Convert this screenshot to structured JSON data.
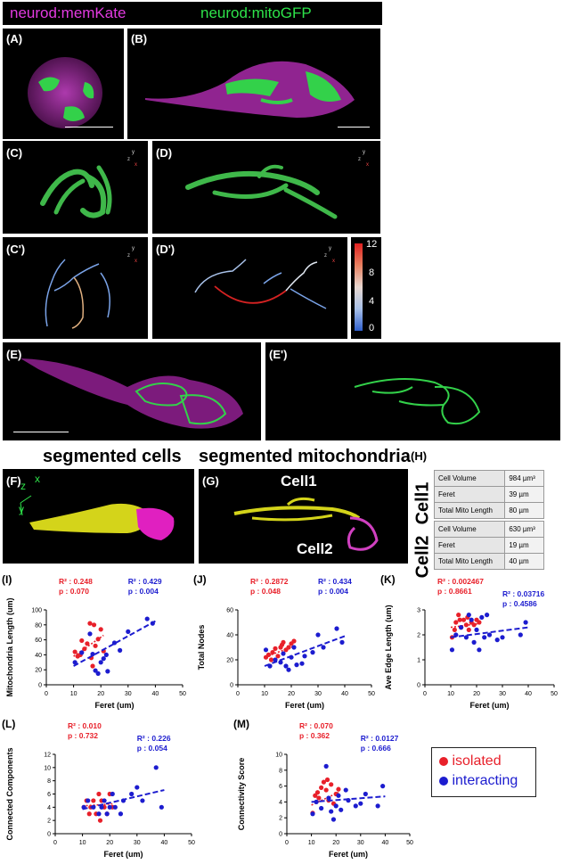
{
  "header": {
    "memkate_label": "neurod:memKate",
    "mitogfp_label": "neurod:mitoGFP"
  },
  "panels": {
    "A": "(A)",
    "B": "(B)",
    "C": "(C)",
    "D": "(D)",
    "C1": "(C')",
    "D1": "(D')",
    "E": "(E)",
    "E1": "(E')",
    "F": "(F)",
    "G": "(G)",
    "H": "(H)",
    "I": "(I)",
    "J": "(J)",
    "K": "(K)",
    "L": "(L)",
    "M": "(M)"
  },
  "colorbar": {
    "ticks": [
      "12",
      "8",
      "4",
      "0"
    ]
  },
  "segmentation": {
    "cells_title": "segmented cells",
    "mito_title": "segmented mitochondria",
    "cell1": "Cell1",
    "cell2": "Cell2",
    "axis_z": "z",
    "axis_x": "x",
    "axis_y": "y"
  },
  "table": {
    "cell1_label": "Cell1",
    "cell2_label": "Cell2",
    "cell1_rows": [
      [
        "Cell Volume",
        "984 µm³"
      ],
      [
        "Feret",
        "39 µm"
      ],
      [
        "Total Mito Length",
        "80 µm"
      ]
    ],
    "cell2_rows": [
      [
        "Cell Volume",
        "630 µm³"
      ],
      [
        "Feret",
        "19 µm"
      ],
      [
        "Total Mito Length",
        "40 µm"
      ]
    ]
  },
  "legend": {
    "isolated": "isolated",
    "interacting": "interacting",
    "isolated_color": "#e8202a",
    "interacting_color": "#1c1ccf"
  },
  "chart_data": [
    {
      "type": "scatter",
      "id": "I",
      "xlabel": "Feret (um)",
      "ylabel": "Mitochondria Length (um)",
      "xlim": [
        0,
        50
      ],
      "ylim": [
        0,
        100
      ],
      "xticks": [
        0,
        10,
        20,
        30,
        40,
        50
      ],
      "yticks": [
        0,
        20,
        40,
        60,
        80,
        100
      ],
      "stats": {
        "red_r2": "R² : 0.248",
        "red_p": "p   : 0.070",
        "blue_r2": "R² : 0.429",
        "blue_p": "p   : 0.004"
      },
      "series": [
        {
          "name": "isolated",
          "color": "#e8202a",
          "points": [
            [
              10.5,
              44
            ],
            [
              11.5,
              38
            ],
            [
              12.5,
              40
            ],
            [
              13,
              59
            ],
            [
              14,
              48
            ],
            [
              15,
              55
            ],
            [
              16,
              82
            ],
            [
              16.5,
              36
            ],
            [
              17,
              25
            ],
            [
              17.5,
              80
            ],
            [
              18,
              52
            ],
            [
              19,
              61
            ],
            [
              20,
              74
            ],
            [
              21,
              45
            ]
          ],
          "fit": [
            [
              10,
              38
            ],
            [
              21,
              66
            ]
          ]
        },
        {
          "name": "interacting",
          "color": "#1c1ccf",
          "points": [
            [
              10.5,
              30
            ],
            [
              13,
              43
            ],
            [
              16,
              68
            ],
            [
              17,
              41
            ],
            [
              18,
              19
            ],
            [
              19,
              15
            ],
            [
              20,
              30
            ],
            [
              21,
              35
            ],
            [
              22,
              40
            ],
            [
              22.5,
              18
            ],
            [
              25,
              56
            ],
            [
              27,
              46
            ],
            [
              30,
              71
            ],
            [
              37,
              88
            ],
            [
              39,
              82
            ]
          ],
          "fit": [
            [
              10,
              25
            ],
            [
              40,
              85
            ]
          ]
        }
      ]
    },
    {
      "type": "scatter",
      "id": "J",
      "xlabel": "Feret (um)",
      "ylabel": "Total Nodes",
      "xlim": [
        0,
        50
      ],
      "ylim": [
        0,
        60
      ],
      "xticks": [
        0,
        10,
        20,
        30,
        40,
        50
      ],
      "yticks": [
        0,
        20,
        40,
        60
      ],
      "stats": {
        "red_r2": "R² : 0.2872",
        "red_p": "p   : 0.048",
        "blue_r2": "R² : 0.434",
        "blue_p": "p   : 0.004"
      },
      "series": [
        {
          "name": "isolated",
          "color": "#e8202a",
          "points": [
            [
              10.5,
              22
            ],
            [
              11.5,
              24
            ],
            [
              12.5,
              20
            ],
            [
              13,
              26
            ],
            [
              14,
              29
            ],
            [
              15,
              23
            ],
            [
              16,
              30
            ],
            [
              16.5,
              32
            ],
            [
              17,
              34
            ],
            [
              18,
              28
            ],
            [
              19,
              30
            ],
            [
              20,
              33
            ],
            [
              21,
              35
            ]
          ],
          "fit": [
            [
              10,
              22
            ],
            [
              21,
              31
            ]
          ]
        },
        {
          "name": "interacting",
          "color": "#1c1ccf",
          "points": [
            [
              10.5,
              28
            ],
            [
              12,
              15
            ],
            [
              14,
              20
            ],
            [
              16,
              18
            ],
            [
              17,
              25
            ],
            [
              18,
              15
            ],
            [
              19,
              12
            ],
            [
              20,
              22
            ],
            [
              21,
              30
            ],
            [
              22,
              16
            ],
            [
              24,
              17
            ],
            [
              25,
              23
            ],
            [
              28,
              26
            ],
            [
              30,
              40
            ],
            [
              32,
              30
            ],
            [
              37,
              45
            ],
            [
              39,
              34
            ]
          ],
          "fit": [
            [
              10,
              15
            ],
            [
              40,
              39
            ]
          ]
        }
      ]
    },
    {
      "type": "scatter",
      "id": "K",
      "xlabel": "Feret (um)",
      "ylabel": "Ave Edge Length (um)",
      "xlim": [
        0,
        50
      ],
      "ylim": [
        0,
        3
      ],
      "xticks": [
        0,
        10,
        20,
        30,
        40,
        50
      ],
      "yticks": [
        0,
        1,
        2,
        3
      ],
      "stats": {
        "red_r2": "R² : 0.002467",
        "red_p": "p   : 0.8661",
        "blue_r2": "R² : 0.03716",
        "blue_p": "p   : 0.4586"
      },
      "series": [
        {
          "name": "isolated",
          "color": "#e8202a",
          "points": [
            [
              10.5,
              1.9
            ],
            [
              11.5,
              2.2
            ],
            [
              12,
              2.5
            ],
            [
              13,
              2.8
            ],
            [
              13.5,
              2.6
            ],
            [
              14,
              2.3
            ],
            [
              15,
              2.6
            ],
            [
              16,
              2.4
            ],
            [
              16.5,
              2.7
            ],
            [
              17,
              2.2
            ],
            [
              18,
              2.5
            ],
            [
              19,
              2.4
            ],
            [
              20,
              2.6
            ],
            [
              21,
              2.5
            ]
          ],
          "fit": [
            [
              10,
              2.3
            ],
            [
              21,
              2.45
            ]
          ]
        },
        {
          "name": "interacting",
          "color": "#1c1ccf",
          "points": [
            [
              10.5,
              1.4
            ],
            [
              12,
              2.0
            ],
            [
              14,
              2.3
            ],
            [
              16,
              1.9
            ],
            [
              17,
              2.8
            ],
            [
              18,
              2.6
            ],
            [
              19,
              1.7
            ],
            [
              20,
              2.2
            ],
            [
              21,
              1.4
            ],
            [
              22,
              2.7
            ],
            [
              23,
              1.9
            ],
            [
              24,
              2.8
            ],
            [
              25,
              2.0
            ],
            [
              28,
              1.8
            ],
            [
              30,
              1.9
            ],
            [
              37,
              2.0
            ],
            [
              39,
              2.5
            ]
          ],
          "fit": [
            [
              10,
              1.9
            ],
            [
              40,
              2.3
            ]
          ]
        }
      ]
    },
    {
      "type": "scatter",
      "id": "L",
      "xlabel": "Feret (um)",
      "ylabel": "Connected Components",
      "xlim": [
        0,
        50
      ],
      "ylim": [
        0,
        12
      ],
      "xticks": [
        0,
        10,
        20,
        30,
        40,
        50
      ],
      "yticks": [
        0,
        2,
        4,
        6,
        8,
        10,
        12
      ],
      "stats": {
        "red_r2": "R² : 0.010",
        "red_p": "p   : 0.732",
        "blue_r2": "R² : 0.226",
        "blue_p": "p   : 0.054"
      },
      "series": [
        {
          "name": "isolated",
          "color": "#e8202a",
          "points": [
            [
              10.5,
              4
            ],
            [
              11.5,
              5
            ],
            [
              12.5,
              3
            ],
            [
              13,
              4
            ],
            [
              14,
              5
            ],
            [
              15,
              3
            ],
            [
              16,
              6
            ],
            [
              16.5,
              2
            ],
            [
              17,
              5
            ],
            [
              18,
              4
            ],
            [
              19,
              3
            ],
            [
              20,
              6
            ],
            [
              21,
              4
            ]
          ],
          "fit": [
            [
              10,
              4.2
            ],
            [
              21,
              4.5
            ]
          ]
        },
        {
          "name": "interacting",
          "color": "#1c1ccf",
          "points": [
            [
              10.5,
              4
            ],
            [
              12,
              5
            ],
            [
              14,
              4
            ],
            [
              16,
              3
            ],
            [
              17,
              4
            ],
            [
              18,
              5
            ],
            [
              19,
              3
            ],
            [
              20,
              4
            ],
            [
              21,
              6
            ],
            [
              22,
              4
            ],
            [
              24,
              3
            ],
            [
              25,
              5
            ],
            [
              28,
              6
            ],
            [
              30,
              7
            ],
            [
              32,
              5
            ],
            [
              37,
              10
            ],
            [
              39,
              4
            ]
          ],
          "fit": [
            [
              10,
              3.7
            ],
            [
              40,
              6.6
            ]
          ]
        }
      ]
    },
    {
      "type": "scatter",
      "id": "M",
      "xlabel": "Feret (um)",
      "ylabel": "Connectivity Score",
      "xlim": [
        0,
        50
      ],
      "ylim": [
        0,
        10
      ],
      "xticks": [
        0,
        10,
        20,
        30,
        40,
        50
      ],
      "yticks": [
        0,
        2,
        4,
        6,
        8,
        10
      ],
      "stats": {
        "red_r2": "R² : 0.070",
        "red_p": "p   : 0.362",
        "blue_r2": "R² : 0.0127",
        "blue_p": "p   : 0.666"
      },
      "series": [
        {
          "name": "isolated",
          "color": "#e8202a",
          "points": [
            [
              10.5,
              2.6
            ],
            [
              11.5,
              4.8
            ],
            [
              12.5,
              5.2
            ],
            [
              13,
              4.5
            ],
            [
              14,
              5.8
            ],
            [
              15,
              6.5
            ],
            [
              16,
              5.5
            ],
            [
              16.5,
              6.8
            ],
            [
              17,
              4.2
            ],
            [
              18,
              6.2
            ],
            [
              19,
              3.8
            ],
            [
              20,
              5.0
            ],
            [
              21,
              5.6
            ]
          ],
          "fit": [
            [
              10,
              3.6
            ],
            [
              21,
              5.2
            ]
          ]
        },
        {
          "name": "interacting",
          "color": "#1c1ccf",
          "points": [
            [
              10.5,
              2.5
            ],
            [
              12,
              4.0
            ],
            [
              14,
              3.2
            ],
            [
              16,
              8.5
            ],
            [
              17,
              4.5
            ],
            [
              18,
              2.8
            ],
            [
              19,
              1.8
            ],
            [
              20,
              3.5
            ],
            [
              21,
              4.8
            ],
            [
              22,
              3.0
            ],
            [
              24,
              5.5
            ],
            [
              25,
              4.2
            ],
            [
              28,
              3.5
            ],
            [
              30,
              3.8
            ],
            [
              32,
              5.0
            ],
            [
              37,
              3.5
            ],
            [
              39,
              6.0
            ]
          ],
          "fit": [
            [
              10,
              4.0
            ],
            [
              40,
              4.7
            ]
          ]
        }
      ]
    }
  ]
}
